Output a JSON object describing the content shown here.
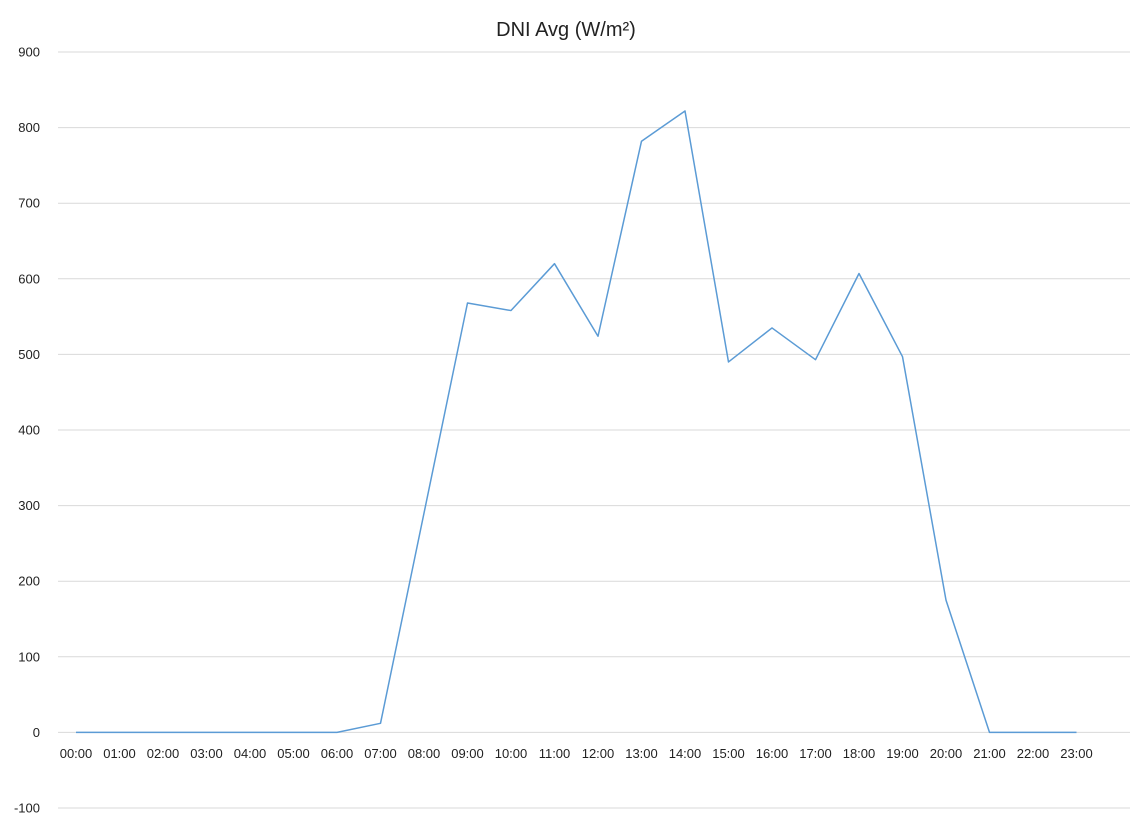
{
  "chart_data": {
    "type": "line",
    "title": "DNI Avg (W/m²)",
    "xlabel": "",
    "ylabel": "",
    "categories": [
      "00:00",
      "01:00",
      "02:00",
      "03:00",
      "04:00",
      "05:00",
      "06:00",
      "07:00",
      "08:00",
      "09:00",
      "10:00",
      "11:00",
      "12:00",
      "13:00",
      "14:00",
      "15:00",
      "16:00",
      "17:00",
      "18:00",
      "19:00",
      "20:00",
      "21:00",
      "22:00",
      "23:00"
    ],
    "series": [
      {
        "values": [
          0,
          0,
          0,
          0,
          0,
          0,
          0,
          12,
          290,
          568,
          558,
          620,
          524,
          782,
          822,
          490,
          535,
          493,
          607,
          497,
          175,
          0,
          0,
          0
        ],
        "color": "#5b9bd5"
      }
    ],
    "ylim": [
      -100,
      900
    ],
    "yticks": [
      -100,
      0,
      100,
      200,
      300,
      400,
      500,
      600,
      700,
      800,
      900
    ],
    "ytick_labels": [
      "-100",
      "0",
      "100",
      "200",
      "300",
      "400",
      "500",
      "600",
      "700",
      "800",
      "900"
    ],
    "grid": true,
    "legend": "none"
  }
}
